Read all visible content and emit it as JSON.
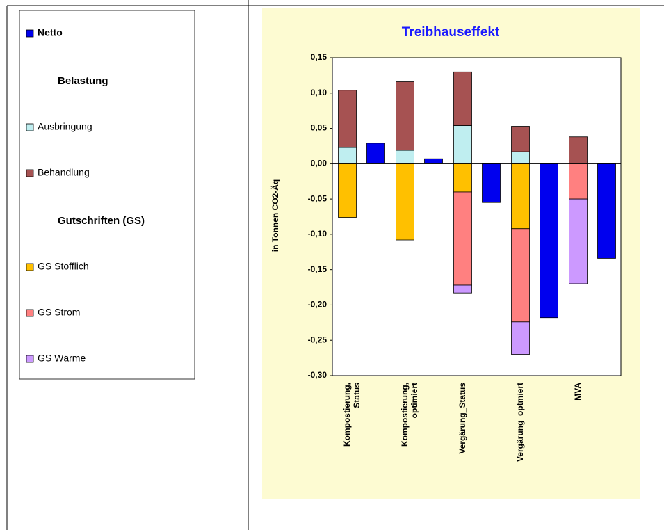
{
  "chart_data": {
    "type": "bar",
    "title": "Treibhauseffekt",
    "y_label": "in Tonnen CO2-Äq",
    "categories": [
      "Kompostierung,\nStatus",
      "Kompostierung,\noptimiert",
      "Vergärung_Status",
      "Vergärung_optmiert",
      "MVA"
    ],
    "legend_headings": [
      "Belastung",
      "Gutschriften (GS)"
    ],
    "series": [
      {
        "name": "Netto",
        "color": "#0000ee",
        "stacked": false,
        "values": [
          0.029,
          0.007,
          -0.055,
          -0.218,
          -0.134
        ]
      },
      {
        "name": "Ausbringung",
        "color": "#bfeef0",
        "stacked": true,
        "legend_group": 0,
        "values": [
          0.023,
          0.019,
          0.054,
          0.017,
          0
        ]
      },
      {
        "name": "Behandlung",
        "color": "#a65252",
        "stacked": true,
        "legend_group": 0,
        "values": [
          0.081,
          0.097,
          0.076,
          0.036,
          0.038
        ]
      },
      {
        "name": "GS Stofflich",
        "color": "#ffc000",
        "stacked": true,
        "legend_group": 1,
        "values": [
          -0.076,
          -0.108,
          -0.04,
          -0.092,
          0
        ]
      },
      {
        "name": "GS Strom",
        "color": "#ff8080",
        "stacked": true,
        "legend_group": 1,
        "values": [
          0,
          0,
          -0.132,
          -0.132,
          -0.05
        ]
      },
      {
        "name": "GS Wärme",
        "color": "#cc99ff",
        "stacked": true,
        "legend_group": 1,
        "values": [
          0,
          0,
          -0.011,
          -0.046,
          -0.12
        ]
      }
    ],
    "ylim": [
      -0.3,
      0.15
    ],
    "yticks": [
      {
        "value": -0.3,
        "label": "-0,30"
      },
      {
        "value": -0.25,
        "label": "-0,25"
      },
      {
        "value": -0.2,
        "label": "-0,20"
      },
      {
        "value": -0.15,
        "label": "-0,15"
      },
      {
        "value": -0.1,
        "label": "-0,10"
      },
      {
        "value": -0.05,
        "label": "-0,05"
      },
      {
        "value": 0,
        "label": "0,00"
      },
      {
        "value": 0.05,
        "label": "0,05"
      },
      {
        "value": 0.1,
        "label": "0,10"
      },
      {
        "value": 0.15,
        "label": "0,15"
      }
    ],
    "grid": false
  }
}
